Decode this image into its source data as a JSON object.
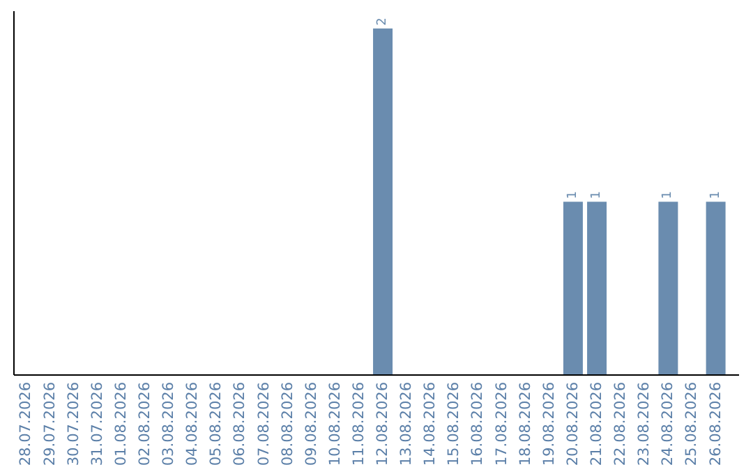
{
  "chart_data": {
    "type": "bar",
    "categories": [
      "28.07.2026",
      "29.07.2026",
      "30.07.2026",
      "31.07.2026",
      "01.08.2026",
      "02.08.2026",
      "03.08.2026",
      "04.08.2026",
      "05.08.2026",
      "06.08.2026",
      "07.08.2026",
      "08.08.2026",
      "09.08.2026",
      "10.08.2026",
      "11.08.2026",
      "12.08.2026",
      "13.08.2026",
      "14.08.2026",
      "15.08.2026",
      "16.08.2026",
      "17.08.2026",
      "18.08.2026",
      "19.08.2026",
      "20.08.2026",
      "21.08.2026",
      "22.08.2026",
      "23.08.2026",
      "24.08.2026",
      "25.08.2026",
      "26.08.2026"
    ],
    "values": [
      null,
      null,
      null,
      null,
      null,
      null,
      null,
      null,
      null,
      null,
      null,
      null,
      null,
      null,
      null,
      2,
      null,
      null,
      null,
      null,
      null,
      null,
      null,
      1,
      1,
      null,
      null,
      1,
      null,
      1
    ],
    "color": "#6a8caf",
    "data_labels": true,
    "tick_labels": "x"
  }
}
